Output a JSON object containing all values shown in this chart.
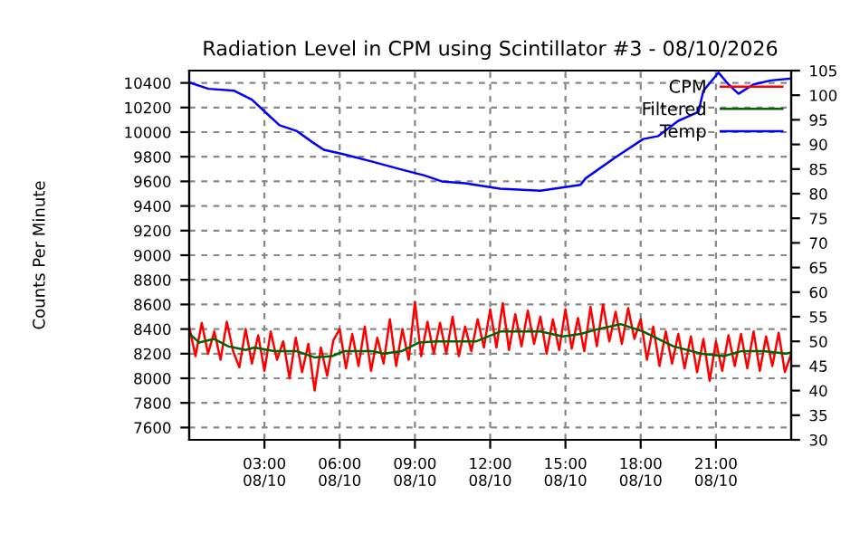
{
  "chart_data": {
    "type": "line",
    "title": "Radiation Level in CPM using Scintillator #3 - 08/10/2026",
    "ylabel": "Counts Per Minute",
    "xlim": [
      "2026-08-10T00:00",
      "2026-08-11T00:00"
    ],
    "xticks": [
      {
        "value": "2026-08-10T03:00",
        "label": "03:00\n08/10"
      },
      {
        "value": "2026-08-10T06:00",
        "label": "06:00\n08/10"
      },
      {
        "value": "2026-08-10T09:00",
        "label": "09:00\n08/10"
      },
      {
        "value": "2026-08-10T12:00",
        "label": "12:00\n08/10"
      },
      {
        "value": "2026-08-10T15:00",
        "label": "15:00\n08/10"
      },
      {
        "value": "2026-08-10T18:00",
        "label": "18:00\n08/10"
      },
      {
        "value": "2026-08-10T21:00",
        "label": "21:00\n08/10"
      }
    ],
    "ylim": [
      7500,
      10500
    ],
    "yticks": [
      7600,
      7800,
      8000,
      8200,
      8400,
      8600,
      8800,
      9000,
      9200,
      9400,
      9600,
      9800,
      10000,
      10200,
      10400
    ],
    "y2lim": [
      30,
      105
    ],
    "y2ticks": [
      30,
      35,
      40,
      45,
      50,
      55,
      60,
      65,
      70,
      75,
      80,
      85,
      90,
      95,
      100,
      105
    ],
    "grid": true,
    "legend": "top right",
    "line_style": "solid",
    "series": [
      {
        "name": "CPM",
        "color": "#ff0000",
        "x": [
          "2026-08-10T00:00",
          "2026-08-10T00:15",
          "2026-08-10T00:30",
          "2026-08-10T00:45",
          "2026-08-10T01:00",
          "2026-08-10T01:15",
          "2026-08-10T01:30",
          "2026-08-10T01:45",
          "2026-08-10T02:00",
          "2026-08-10T02:15",
          "2026-08-10T02:30",
          "2026-08-10T02:45",
          "2026-08-10T03:00",
          "2026-08-10T03:15",
          "2026-08-10T03:30",
          "2026-08-10T03:45",
          "2026-08-10T04:00",
          "2026-08-10T04:15",
          "2026-08-10T04:30",
          "2026-08-10T04:45",
          "2026-08-10T05:00",
          "2026-08-10T05:15",
          "2026-08-10T05:30",
          "2026-08-10T05:45",
          "2026-08-10T06:00",
          "2026-08-10T06:15",
          "2026-08-10T06:30",
          "2026-08-10T06:45",
          "2026-08-10T07:00",
          "2026-08-10T07:15",
          "2026-08-10T07:30",
          "2026-08-10T07:45",
          "2026-08-10T08:00",
          "2026-08-10T08:15",
          "2026-08-10T08:30",
          "2026-08-10T08:45",
          "2026-08-10T09:00",
          "2026-08-10T09:15",
          "2026-08-10T09:30",
          "2026-08-10T09:45",
          "2026-08-10T10:00",
          "2026-08-10T10:15",
          "2026-08-10T10:30",
          "2026-08-10T10:45",
          "2026-08-10T11:00",
          "2026-08-10T11:15",
          "2026-08-10T11:30",
          "2026-08-10T11:45",
          "2026-08-10T12:00",
          "2026-08-10T12:15",
          "2026-08-10T12:30",
          "2026-08-10T12:45",
          "2026-08-10T13:00",
          "2026-08-10T13:15",
          "2026-08-10T13:30",
          "2026-08-10T13:45",
          "2026-08-10T14:00",
          "2026-08-10T14:15",
          "2026-08-10T14:30",
          "2026-08-10T14:45",
          "2026-08-10T15:00",
          "2026-08-10T15:15",
          "2026-08-10T15:30",
          "2026-08-10T15:45",
          "2026-08-10T16:00",
          "2026-08-10T16:15",
          "2026-08-10T16:30",
          "2026-08-10T16:45",
          "2026-08-10T17:00",
          "2026-08-10T17:15",
          "2026-08-10T17:30",
          "2026-08-10T17:45",
          "2026-08-10T18:00",
          "2026-08-10T18:15",
          "2026-08-10T18:30",
          "2026-08-10T18:45",
          "2026-08-10T19:00",
          "2026-08-10T19:15",
          "2026-08-10T19:30",
          "2026-08-10T19:45",
          "2026-08-10T20:00",
          "2026-08-10T20:15",
          "2026-08-10T20:30",
          "2026-08-10T20:45",
          "2026-08-10T21:00",
          "2026-08-10T21:15",
          "2026-08-10T21:30",
          "2026-08-10T21:45",
          "2026-08-10T22:00",
          "2026-08-10T22:15",
          "2026-08-10T22:30",
          "2026-08-10T22:45",
          "2026-08-10T23:00",
          "2026-08-10T23:15",
          "2026-08-10T23:30",
          "2026-08-10T23:45",
          "2026-08-11T00:00"
        ],
        "values": [
          8420,
          8180,
          8450,
          8200,
          8380,
          8150,
          8460,
          8220,
          8090,
          8400,
          8120,
          8350,
          8060,
          8380,
          8150,
          8300,
          8000,
          8330,
          8050,
          8280,
          7900,
          8250,
          8020,
          8310,
          8400,
          8080,
          8360,
          8100,
          8420,
          8060,
          8330,
          8120,
          8480,
          8100,
          8400,
          8150,
          8620,
          8180,
          8460,
          8200,
          8450,
          8200,
          8500,
          8180,
          8420,
          8220,
          8480,
          8250,
          8560,
          8250,
          8610,
          8230,
          8520,
          8260,
          8550,
          8280,
          8500,
          8200,
          8480,
          8230,
          8560,
          8240,
          8490,
          8220,
          8580,
          8260,
          8600,
          8300,
          8540,
          8280,
          8570,
          8320,
          8480,
          8150,
          8420,
          8100,
          8380,
          8120,
          8360,
          8080,
          8340,
          8050,
          8320,
          7980,
          8300,
          8060,
          8350,
          8100,
          8360,
          8080,
          8380,
          8060,
          8340,
          8100,
          8370,
          8050,
          8200
        ]
      },
      {
        "name": "Filtered",
        "color": "#006400",
        "x": [
          "2026-08-10T00:02",
          "2026-08-10T00:24",
          "2026-08-10T00:59",
          "2026-08-10T01:33",
          "2026-08-10T02:15",
          "2026-08-10T02:36",
          "2026-08-10T03:24",
          "2026-08-10T04:18",
          "2026-08-10T05:00",
          "2026-08-10T05:42",
          "2026-08-10T06:10",
          "2026-08-10T07:18",
          "2026-08-10T07:46",
          "2026-08-10T08:28",
          "2026-08-10T09:09",
          "2026-08-10T09:50",
          "2026-08-10T10:48",
          "2026-08-10T11:27",
          "2026-08-10T12:24",
          "2026-08-10T14:00",
          "2026-08-10T14:54",
          "2026-08-10T15:36",
          "2026-08-10T16:18",
          "2026-08-10T17:12",
          "2026-08-10T18:06",
          "2026-08-10T19:18",
          "2026-08-10T20:24",
          "2026-08-10T21:18",
          "2026-08-10T22:00",
          "2026-08-10T22:54",
          "2026-08-10T23:48",
          "2026-08-11T00:00"
        ],
        "values": [
          8360,
          8290,
          8320,
          8260,
          8230,
          8250,
          8220,
          8220,
          8170,
          8180,
          8220,
          8220,
          8200,
          8220,
          8290,
          8300,
          8300,
          8300,
          8380,
          8380,
          8340,
          8360,
          8400,
          8440,
          8380,
          8260,
          8200,
          8180,
          8220,
          8220,
          8200,
          8210
        ]
      },
      {
        "name": "Temp",
        "color": "#0000ff",
        "axis": "y2",
        "x": [
          "2026-08-10T00:04",
          "2026-08-10T00:46",
          "2026-08-10T01:48",
          "2026-08-10T02:30",
          "2026-08-10T03:04",
          "2026-08-10T03:36",
          "2026-08-10T04:18",
          "2026-08-10T04:54",
          "2026-08-10T05:22",
          "2026-08-10T06:10",
          "2026-08-10T07:18",
          "2026-08-10T08:28",
          "2026-08-10T09:23",
          "2026-08-10T10:04",
          "2026-08-10T11:00",
          "2026-08-10T12:24",
          "2026-08-10T14:00",
          "2026-08-10T15:36",
          "2026-08-10T15:48",
          "2026-08-10T17:00",
          "2026-08-10T18:06",
          "2026-08-10T18:42",
          "2026-08-10T19:30",
          "2026-08-10T20:18",
          "2026-08-10T20:30",
          "2026-08-10T21:06",
          "2026-08-10T21:30",
          "2026-08-10T21:54",
          "2026-08-10T22:30",
          "2026-08-10T23:12",
          "2026-08-11T00:00"
        ],
        "values": [
          102.5,
          101.3,
          100.9,
          99.1,
          96.4,
          93.9,
          92.7,
          90.5,
          88.9,
          88,
          86.5,
          84.9,
          83.7,
          82.5,
          82.1,
          81,
          80.6,
          81.8,
          83.1,
          87.4,
          91.1,
          91.7,
          94.8,
          96.6,
          100.9,
          104.6,
          102.2,
          100.3,
          102.2,
          103,
          103.4
        ]
      }
    ]
  }
}
